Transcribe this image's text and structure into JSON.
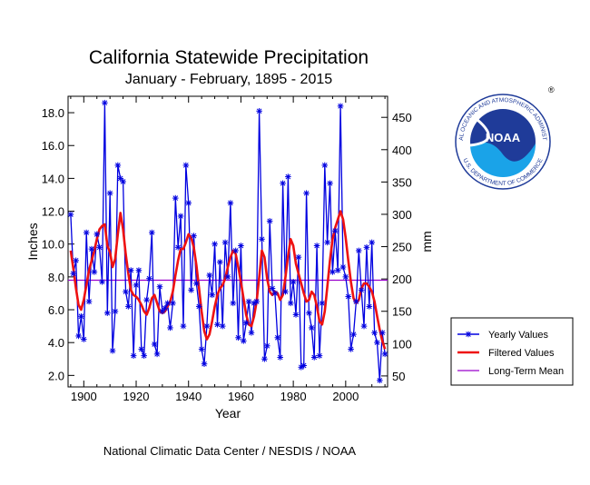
{
  "title": "California Statewide Precipitation",
  "subtitle": "January - February, 1895 - 2015",
  "footer": "National Climatic Data Center / NESDIS / NOAA",
  "logo": {
    "text": "NOAA",
    "ring_top": "NATIONAL OCEANIC AND ATMOSPHERIC ADMINISTRATION",
    "ring_bottom": "U.S. DEPARTMENT OF COMMERCE",
    "registered": "®"
  },
  "colors": {
    "yearly": "#0000e0",
    "filtered": "#ee1111",
    "mean": "#9900cc",
    "noaa_blue": "#1f3b99"
  },
  "chart_data": {
    "type": "line",
    "title": "California Statewide Precipitation",
    "subtitle": "January - February, 1895 - 2015",
    "xlabel": "Year",
    "ylabel": "Inches",
    "ylabel_right": "mm",
    "xlim": [
      1894,
      2016
    ],
    "ylim": [
      1.3,
      19.0
    ],
    "x_ticks": [
      1900,
      1920,
      1940,
      1960,
      1980,
      2000
    ],
    "x_tick_labels": [
      "1900",
      "1920",
      "1940",
      "1960",
      "1980",
      "2000"
    ],
    "y_ticks": [
      2.0,
      4.0,
      6.0,
      8.0,
      10.0,
      12.0,
      14.0,
      16.0,
      18.0
    ],
    "y_tick_labels": [
      "2.0",
      "4.0",
      "6.0",
      "8.0",
      "10.0",
      "12.0",
      "14.0",
      "16.0",
      "18.0"
    ],
    "y2_ticks": [
      50,
      100,
      150,
      200,
      250,
      300,
      350,
      400,
      450
    ],
    "y2_tick_labels": [
      "50",
      "100",
      "150",
      "200",
      "250",
      "300",
      "350",
      "400",
      "450"
    ],
    "mean_value": 7.8,
    "legend": [
      "Yearly Values",
      "Filtered Values",
      "Long-Term Mean"
    ],
    "years": [
      1895,
      1896,
      1897,
      1898,
      1899,
      1900,
      1901,
      1902,
      1903,
      1904,
      1905,
      1906,
      1907,
      1908,
      1909,
      1910,
      1911,
      1912,
      1913,
      1914,
      1915,
      1916,
      1917,
      1918,
      1919,
      1920,
      1921,
      1922,
      1923,
      1924,
      1925,
      1926,
      1927,
      1928,
      1929,
      1930,
      1931,
      1932,
      1933,
      1934,
      1935,
      1936,
      1937,
      1938,
      1939,
      1940,
      1941,
      1942,
      1943,
      1944,
      1945,
      1946,
      1947,
      1948,
      1949,
      1950,
      1951,
      1952,
      1953,
      1954,
      1955,
      1956,
      1957,
      1958,
      1959,
      1960,
      1961,
      1962,
      1963,
      1964,
      1965,
      1966,
      1967,
      1968,
      1969,
      1970,
      1971,
      1972,
      1973,
      1974,
      1975,
      1976,
      1977,
      1978,
      1979,
      1980,
      1981,
      1982,
      1983,
      1984,
      1985,
      1986,
      1987,
      1988,
      1989,
      1990,
      1991,
      1992,
      1993,
      1994,
      1995,
      1996,
      1997,
      1998,
      1999,
      2000,
      2001,
      2002,
      2003,
      2004,
      2005,
      2006,
      2007,
      2008,
      2009,
      2010,
      2011,
      2012,
      2013,
      2014,
      2015
    ],
    "yearly_values": [
      11.8,
      8.2,
      9.0,
      4.4,
      5.6,
      4.2,
      10.7,
      6.5,
      9.7,
      8.3,
      10.6,
      9.8,
      7.7,
      18.6,
      5.8,
      13.1,
      3.5,
      5.9,
      14.8,
      14.0,
      13.8,
      7.1,
      6.2,
      8.4,
      3.2,
      7.5,
      8.4,
      3.6,
      3.2,
      6.6,
      7.9,
      10.7,
      3.9,
      3.3,
      7.4,
      5.9,
      6.1,
      6.4,
      4.9,
      6.4,
      12.8,
      9.8,
      11.7,
      5.0,
      14.8,
      12.5,
      7.2,
      10.5,
      7.6,
      6.2,
      3.6,
      2.7,
      5.0,
      8.1,
      6.9,
      10.0,
      5.1,
      8.9,
      5.0,
      10.1,
      8.0,
      12.5,
      6.4,
      9.6,
      4.3,
      9.9,
      4.1,
      5.2,
      6.5,
      4.6,
      6.4,
      6.5,
      18.1,
      10.3,
      3.0,
      3.8,
      11.4,
      7.3,
      7.0,
      4.3,
      3.1,
      13.7,
      7.1,
      14.1,
      6.4,
      7.7,
      5.7,
      9.2,
      2.5,
      2.6,
      13.1,
      5.8,
      4.9,
      3.1,
      9.9,
      3.2,
      6.4,
      14.8,
      10.1,
      13.7,
      8.3,
      10.8,
      8.4,
      18.4,
      8.6,
      8.0,
      6.8,
      3.6,
      4.5,
      6.5,
      9.6,
      7.2,
      5.0,
      9.8,
      6.2,
      10.1,
      4.6,
      4.0,
      1.7,
      4.6,
      3.3
    ],
    "filtered_values": [
      9.6,
      8.5,
      7.3,
      6.3,
      6.0,
      6.6,
      7.5,
      8.4,
      9.0,
      9.6,
      10.3,
      10.9,
      11.1,
      11.2,
      9.9,
      9.5,
      8.6,
      9.1,
      10.6,
      11.9,
      10.9,
      9.4,
      8.2,
      7.2,
      6.9,
      6.8,
      6.6,
      6.3,
      5.9,
      5.7,
      6.1,
      6.7,
      6.9,
      6.4,
      5.9,
      5.8,
      5.9,
      6.2,
      6.5,
      7.1,
      8.1,
      9.0,
      9.7,
      9.7,
      10.1,
      10.6,
      10.4,
      9.8,
      8.7,
      7.3,
      5.9,
      4.7,
      4.2,
      4.5,
      5.3,
      6.2,
      6.9,
      7.3,
      7.5,
      7.9,
      8.6,
      9.2,
      9.6,
      9.4,
      8.6,
      7.7,
      6.7,
      5.7,
      5.1,
      5.0,
      5.6,
      6.5,
      8.0,
      9.6,
      9.2,
      7.9,
      7.1,
      6.9,
      7.1,
      7.0,
      6.6,
      6.9,
      8.0,
      9.3,
      10.3,
      9.9,
      8.8,
      8.2,
      7.6,
      7.0,
      6.5,
      6.6,
      7.1,
      6.9,
      6.2,
      5.3,
      5.1,
      5.9,
      7.4,
      9.0,
      10.3,
      11.0,
      11.5,
      12.0,
      11.5,
      10.4,
      9.0,
      7.7,
      6.7,
      6.4,
      6.6,
      7.3,
      7.6,
      7.6,
      7.4,
      7.1,
      6.5,
      5.6,
      4.8,
      4.1,
      3.6
    ]
  },
  "logo_label": "NOAA"
}
